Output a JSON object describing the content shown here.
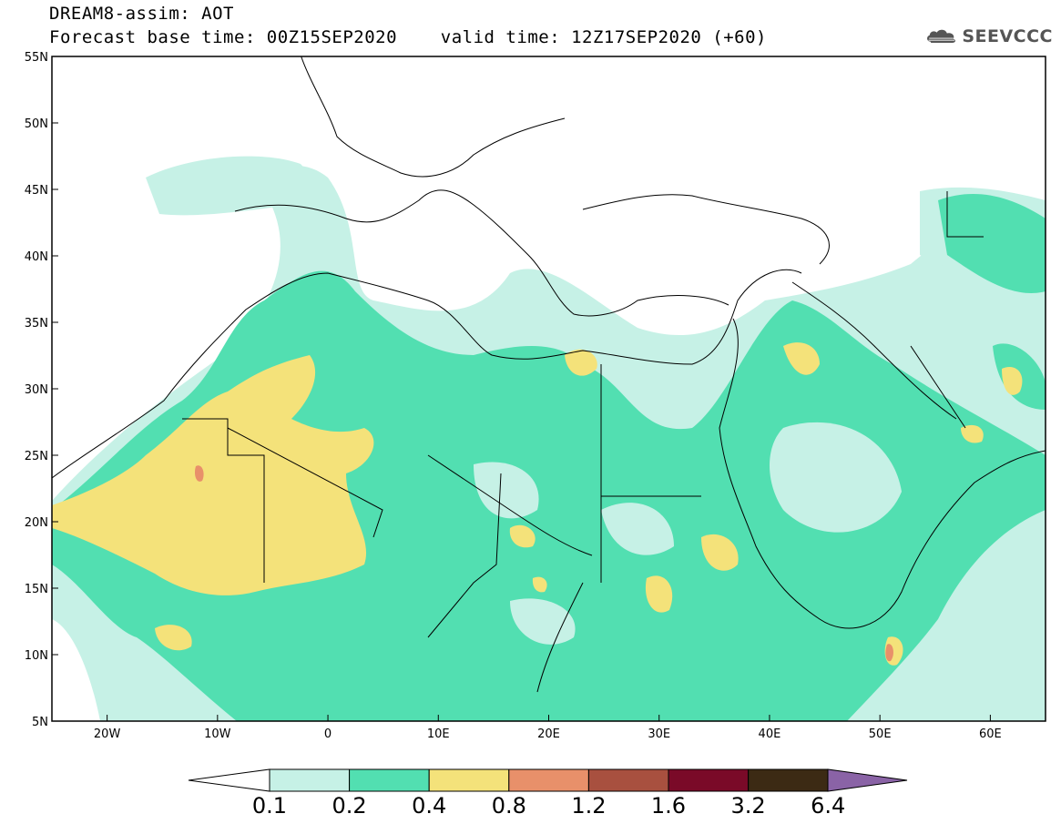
{
  "header": {
    "title_line1": "DREAM8-assim: AOT",
    "title_line2": "Forecast base time: 00Z15SEP2020    valid time: 12Z17SEP2020 (+60)",
    "logo_text": "SEEVCCC"
  },
  "map": {
    "lon_range": [
      -25,
      65
    ],
    "lat_range": [
      5,
      55
    ],
    "lat_ticks": [
      {
        "value": 55,
        "label": "55N"
      },
      {
        "value": 50,
        "label": "50N"
      },
      {
        "value": 45,
        "label": "45N"
      },
      {
        "value": 40,
        "label": "40N"
      },
      {
        "value": 35,
        "label": "35N"
      },
      {
        "value": 30,
        "label": "30N"
      },
      {
        "value": 25,
        "label": "25N"
      },
      {
        "value": 20,
        "label": "20N"
      },
      {
        "value": 15,
        "label": "15N"
      },
      {
        "value": 10,
        "label": "10N"
      },
      {
        "value": 5,
        "label": "5N"
      }
    ],
    "lon_ticks": [
      {
        "value": -20,
        "label": "20W"
      },
      {
        "value": -10,
        "label": "10W"
      },
      {
        "value": 0,
        "label": "0"
      },
      {
        "value": 10,
        "label": "10E"
      },
      {
        "value": 20,
        "label": "20E"
      },
      {
        "value": 30,
        "label": "30E"
      },
      {
        "value": 40,
        "label": "40E"
      },
      {
        "value": 50,
        "label": "50E"
      },
      {
        "value": 60,
        "label": "60E"
      }
    ]
  },
  "colorbar": {
    "labels": [
      "0.1",
      "0.2",
      "0.4",
      "0.8",
      "1.2",
      "1.6",
      "3.2",
      "6.4"
    ],
    "colors": [
      "#c6f1e6",
      "#52dfb1",
      "#f4e27a",
      "#e8906a",
      "#a8503f",
      "#7a0a28",
      "#3c2a14"
    ],
    "under_color": "#ffffff",
    "over_color": "#8a63a6"
  }
}
